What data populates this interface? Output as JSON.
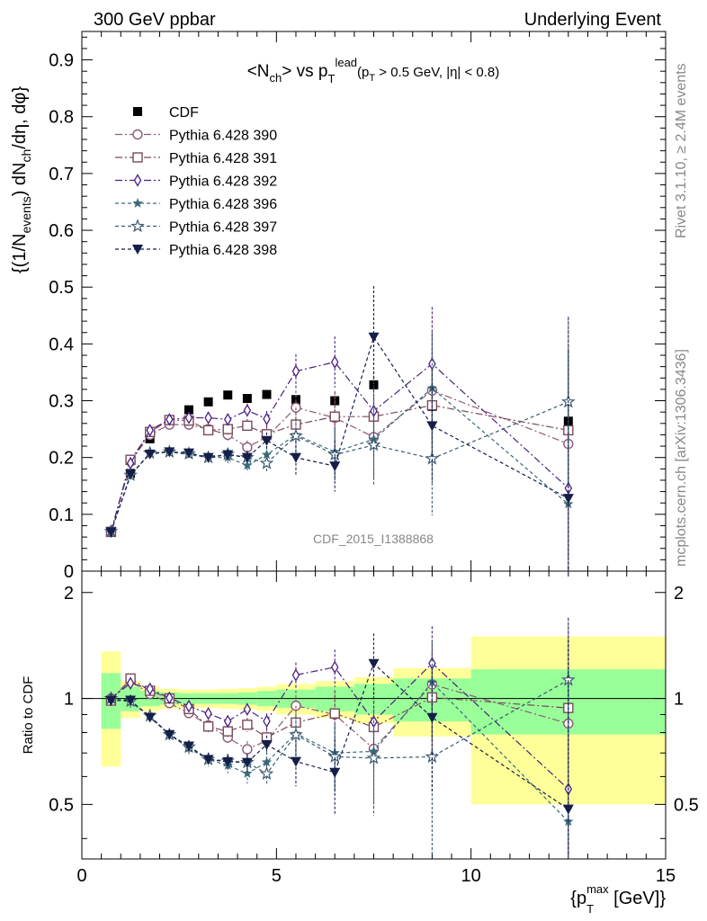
{
  "header": {
    "left": "300 GeV ppbar",
    "right": "Underlying Event",
    "side_top": "Rivet 3.1.10, ≥ 2.4M events",
    "side_bottom": "mcplots.cern.ch [arXiv:1306.3436]",
    "watermark": "CDF_2015_I1388868"
  },
  "chart_data": {
    "type": "scatter",
    "title": {
      "main": "<N",
      "main_sub": "ch",
      "main_mid": "> vs p",
      "main_sub2": "T",
      "main_sup2": "lead",
      "cut": "(p",
      "cut_sub": "T",
      "cut_rest": " > 0.5 GeV, |η| < 0.8)"
    },
    "ylabel": {
      "a": "{(1/N",
      "a_sub": "events",
      "b": ") dN",
      "b_sub": "ch",
      "c": "/dη, dφ}"
    },
    "xlabel": {
      "a": "{p",
      "a_sub": "T",
      "a_sup": "max",
      "b": " [GeV]}"
    },
    "ratio_ylabel": "Ratio to CDF",
    "xlim": [
      0,
      15
    ],
    "ylim": [
      0,
      0.95
    ],
    "ratio_ylim": [
      0.35,
      2.3
    ],
    "x_ticks": [
      0,
      5,
      10,
      15
    ],
    "y_ticks": [
      0,
      0.1,
      0.2,
      0.3,
      0.4,
      0.5,
      0.6,
      0.7,
      0.8,
      0.9
    ],
    "ratio_ticks": [
      0.5,
      1,
      2
    ],
    "x": [
      0.75,
      1.25,
      1.75,
      2.25,
      2.75,
      3.25,
      3.75,
      4.25,
      4.75,
      5.5,
      6.5,
      7.5,
      9,
      12.5
    ],
    "bins": [
      [
        0.5,
        1
      ],
      [
        1,
        1.5
      ],
      [
        1.5,
        2
      ],
      [
        2,
        2.5
      ],
      [
        2.5,
        3
      ],
      [
        3,
        3.5
      ],
      [
        3.5,
        4
      ],
      [
        4,
        4.5
      ],
      [
        4.5,
        5
      ],
      [
        5,
        6
      ],
      [
        6,
        7
      ],
      [
        7,
        8
      ],
      [
        8,
        10
      ],
      [
        10,
        15
      ]
    ],
    "band_inner": [
      0.18,
      0.08,
      0.05,
      0.04,
      0.035,
      0.035,
      0.035,
      0.04,
      0.05,
      0.06,
      0.08,
      0.1,
      0.14,
      0.21
    ],
    "band_outer": [
      0.36,
      0.12,
      0.08,
      0.065,
      0.06,
      0.06,
      0.065,
      0.07,
      0.08,
      0.1,
      0.12,
      0.15,
      0.22,
      0.5
    ],
    "legend_placement": "top-left",
    "series": [
      {
        "name": "CDF",
        "key": "cdf",
        "marker": "filled-square",
        "color": "#000000",
        "dash": "",
        "values": [
          0.07,
          0.172,
          0.233,
          0.266,
          0.284,
          0.298,
          0.31,
          0.304,
          0.311,
          0.302,
          0.3,
          0.328,
          0.29,
          0.264
        ],
        "errors": [
          0,
          0,
          0,
          0,
          0,
          0,
          0,
          0,
          0,
          0,
          0,
          0,
          0,
          0
        ]
      },
      {
        "name": "Pythia 6.428 390",
        "key": "p390",
        "marker": "open-circle",
        "color": "#8a5a78",
        "dash": "8,3,2,3",
        "values": [
          0.07,
          0.193,
          0.24,
          0.258,
          0.258,
          0.25,
          0.24,
          0.218,
          0.236,
          0.288,
          0.27,
          0.236,
          0.318,
          0.224
        ],
        "errors": [
          0.003,
          0.006,
          0.006,
          0.007,
          0.008,
          0.009,
          0.01,
          0.012,
          0.014,
          0.03,
          0.045,
          0.07,
          0.1,
          0.2
        ]
      },
      {
        "name": "Pythia 6.428 391",
        "key": "p391",
        "marker": "open-square",
        "color": "#7a4a5a",
        "dash": "8,3,2,3",
        "values": [
          0.069,
          0.196,
          0.245,
          0.266,
          0.265,
          0.248,
          0.25,
          0.256,
          0.241,
          0.258,
          0.272,
          0.272,
          0.292,
          0.248
        ],
        "errors": [
          0.003,
          0.006,
          0.006,
          0.007,
          0.008,
          0.009,
          0.01,
          0.012,
          0.014,
          0.03,
          0.045,
          0.07,
          0.1,
          0.15
        ]
      },
      {
        "name": "Pythia 6.428 392",
        "key": "p392",
        "marker": "open-diamond",
        "color": "#4a2080",
        "dash": "8,3,2,3",
        "values": [
          0.07,
          0.19,
          0.248,
          0.267,
          0.27,
          0.27,
          0.267,
          0.283,
          0.268,
          0.352,
          0.368,
          0.282,
          0.365,
          0.146
        ],
        "errors": [
          0.003,
          0.006,
          0.006,
          0.007,
          0.008,
          0.009,
          0.01,
          0.012,
          0.014,
          0.03,
          0.045,
          0.07,
          0.1,
          0.3
        ]
      },
      {
        "name": "Pythia 6.428 396",
        "key": "p396",
        "marker": "filled-star",
        "color": "#3a6a7a",
        "dash": "4,3",
        "values": [
          0.07,
          0.168,
          0.208,
          0.21,
          0.205,
          0.2,
          0.2,
          0.186,
          0.205,
          0.24,
          0.21,
          0.232,
          0.322,
          0.118
        ],
        "errors": [
          0.003,
          0.006,
          0.006,
          0.007,
          0.008,
          0.009,
          0.01,
          0.012,
          0.014,
          0.03,
          0.045,
          0.07,
          0.1,
          0.2
        ]
      },
      {
        "name": "Pythia 6.428 397",
        "key": "p397",
        "marker": "open-star",
        "color": "#3a5a70",
        "dash": "4,3",
        "values": [
          0.07,
          0.169,
          0.208,
          0.21,
          0.207,
          0.2,
          0.206,
          0.2,
          0.19,
          0.238,
          0.205,
          0.222,
          0.198,
          0.298
        ],
        "errors": [
          0.003,
          0.006,
          0.006,
          0.007,
          0.008,
          0.009,
          0.01,
          0.012,
          0.014,
          0.03,
          0.045,
          0.07,
          0.1,
          0.15
        ]
      },
      {
        "name": "Pythia 6.428 398",
        "key": "p398",
        "marker": "filled-triangle-down",
        "color": "#141e48",
        "dash": "4,3",
        "values": [
          0.069,
          0.17,
          0.206,
          0.21,
          0.208,
          0.2,
          0.205,
          0.2,
          0.23,
          0.2,
          0.185,
          0.412,
          0.256,
          0.128
        ],
        "errors": [
          0.003,
          0.006,
          0.006,
          0.007,
          0.008,
          0.009,
          0.01,
          0.012,
          0.014,
          0.03,
          0.045,
          0.09,
          0.1,
          0.26
        ]
      }
    ]
  }
}
